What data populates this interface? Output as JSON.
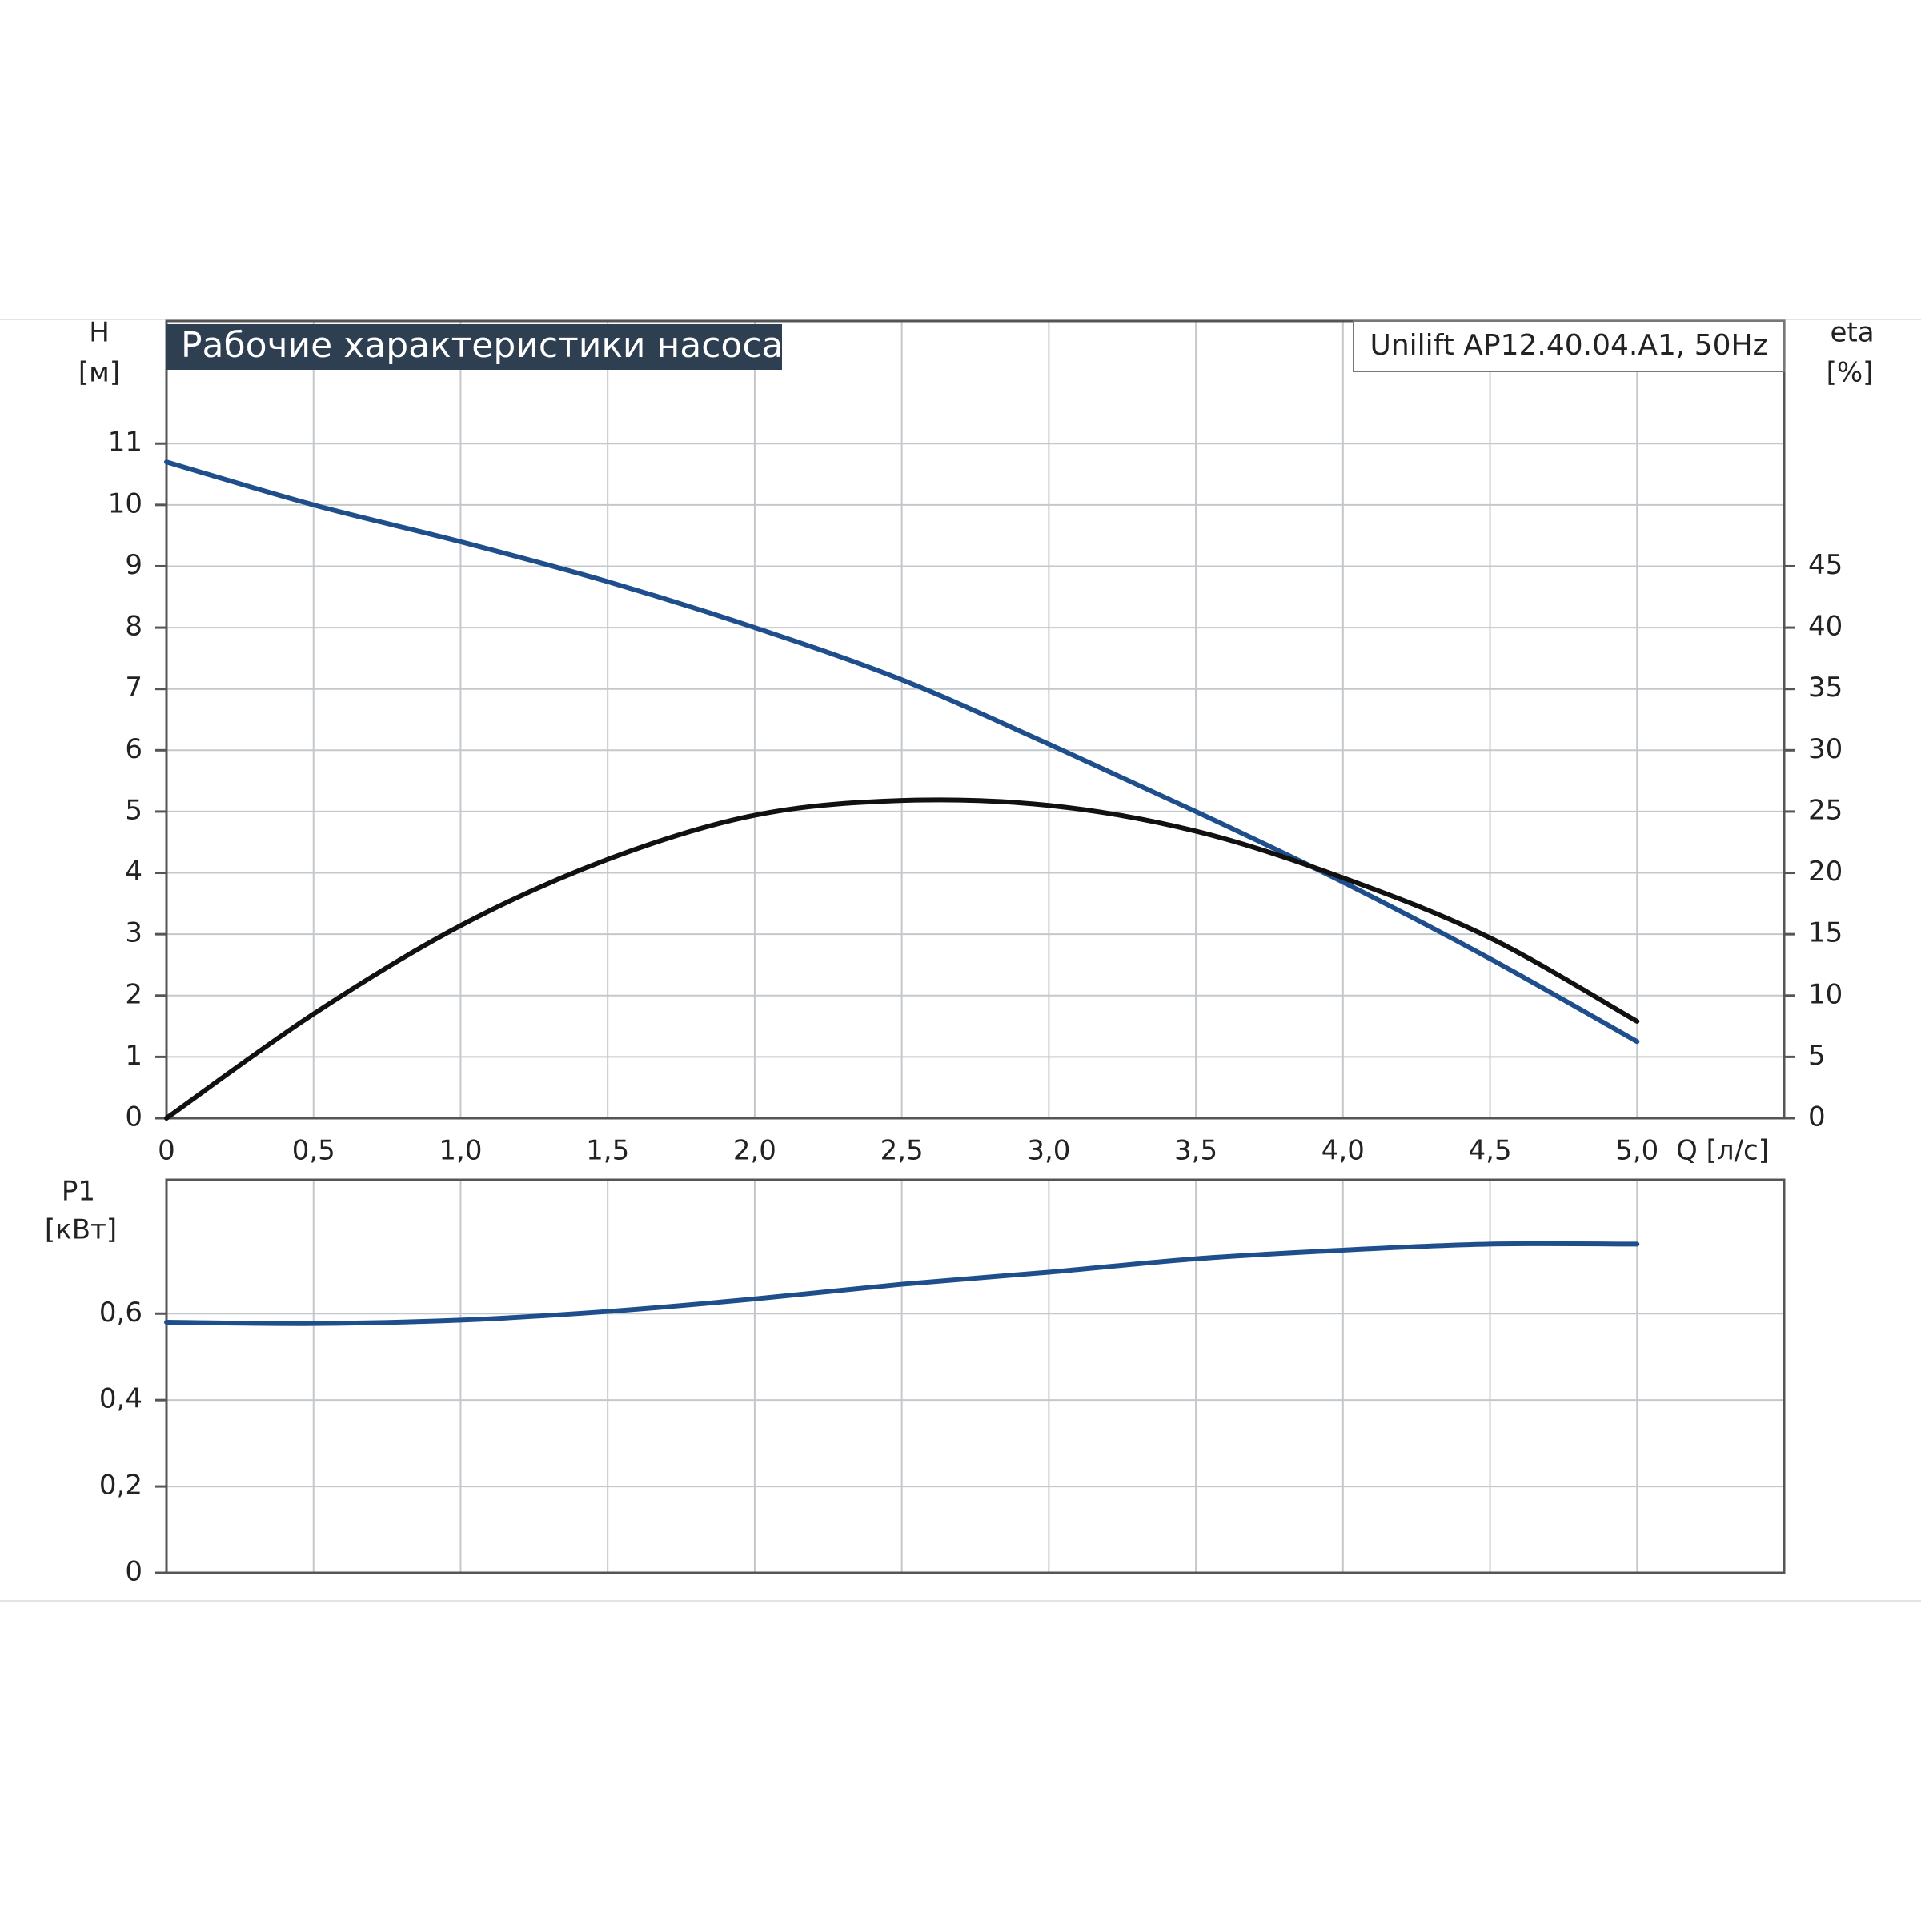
{
  "chart_data": [
    {
      "type": "line",
      "title": "Рабочие характеристики насоса",
      "subtitle": "Unilift AP12.40.04.A1, 50Hz",
      "y_label": "H",
      "y_unit": "[м]",
      "y2_label": "eta",
      "y2_unit": "[%]",
      "x_label": "Q [л/с]",
      "x": [
        0,
        0.5,
        1.0,
        1.5,
        2.0,
        2.5,
        3.0,
        3.5,
        4.0,
        4.5,
        5.0
      ],
      "series": [
        {
          "color": "#1f4e8c",
          "values": [
            10.7,
            10.0,
            9.4,
            8.75,
            8.0,
            7.15,
            6.1,
            5.0,
            3.85,
            2.6,
            1.25
          ]
        },
        {
          "color": "#111111",
          "axis": "y2",
          "values": [
            0,
            8.5,
            15.7,
            21.1,
            24.7,
            25.9,
            25.5,
            23.4,
            19.6,
            14.7,
            7.9
          ]
        }
      ],
      "xlim": [
        0,
        5.5
      ],
      "xticks": [
        0,
        {
          "value": 0.5,
          "label": "0,5"
        },
        {
          "value": 1.0,
          "label": "1,0"
        },
        {
          "value": 1.5,
          "label": "1,5"
        },
        {
          "value": 2.0,
          "label": "2,0"
        },
        {
          "value": 2.5,
          "label": "2,5"
        },
        {
          "value": 3.0,
          "label": "3,0"
        },
        {
          "value": 3.5,
          "label": "3,5"
        },
        {
          "value": 4.0,
          "label": "4,0"
        },
        {
          "value": 4.5,
          "label": "4,5"
        },
        {
          "value": 5.0,
          "label": "5,0"
        }
      ],
      "ylim": [
        0,
        13
      ],
      "yticks": [
        0,
        1,
        2,
        3,
        4,
        5,
        6,
        7,
        8,
        9,
        10,
        11
      ],
      "y2lim": [
        0,
        65
      ],
      "y2ticks": [
        0,
        5,
        10,
        15,
        20,
        25,
        30,
        35,
        40,
        45
      ],
      "grid": true
    },
    {
      "type": "line",
      "y_label": "P1",
      "y_unit": "[кВт]",
      "x": [
        0,
        0.5,
        1.0,
        1.5,
        2.0,
        2.5,
        3.0,
        3.5,
        4.0,
        4.5,
        5.0
      ],
      "series": [
        {
          "color": "#1f4e8c",
          "values": [
            0.58,
            0.577,
            0.585,
            0.605,
            0.634,
            0.668,
            0.696,
            0.727,
            0.747,
            0.761,
            0.761
          ]
        }
      ],
      "xlim": [
        0,
        5.5
      ],
      "ylim": [
        0,
        0.91
      ],
      "yticks": [
        0,
        {
          "value": 0.2,
          "label": "0,2"
        },
        {
          "value": 0.4,
          "label": "0,4"
        },
        {
          "value": 0.6,
          "label": "0,6"
        }
      ],
      "grid": true
    }
  ]
}
